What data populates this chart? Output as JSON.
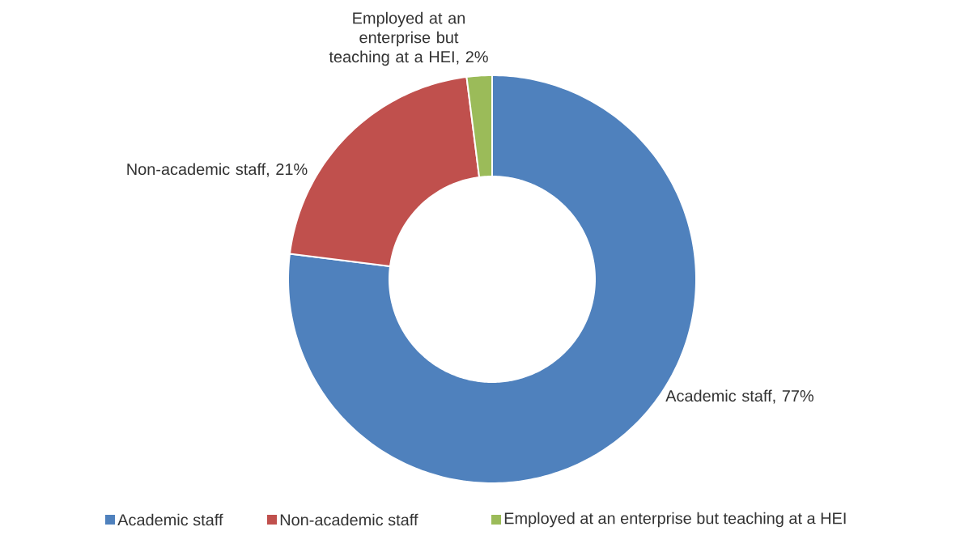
{
  "chart_data": {
    "type": "donut",
    "categories": [
      "Academic staff",
      "Non-academic staff",
      "Employed at an enterprise but teaching at a HEI"
    ],
    "values": [
      77,
      21,
      2
    ],
    "colors": [
      "#4f81bd",
      "#c0504d",
      "#9bbb59"
    ],
    "value_labels": [
      "Academic staff, 77%",
      "Non-academic staff, 21%",
      "Employed at an enterprise but teaching at a HEI, 2%"
    ],
    "legend": "bottom"
  }
}
